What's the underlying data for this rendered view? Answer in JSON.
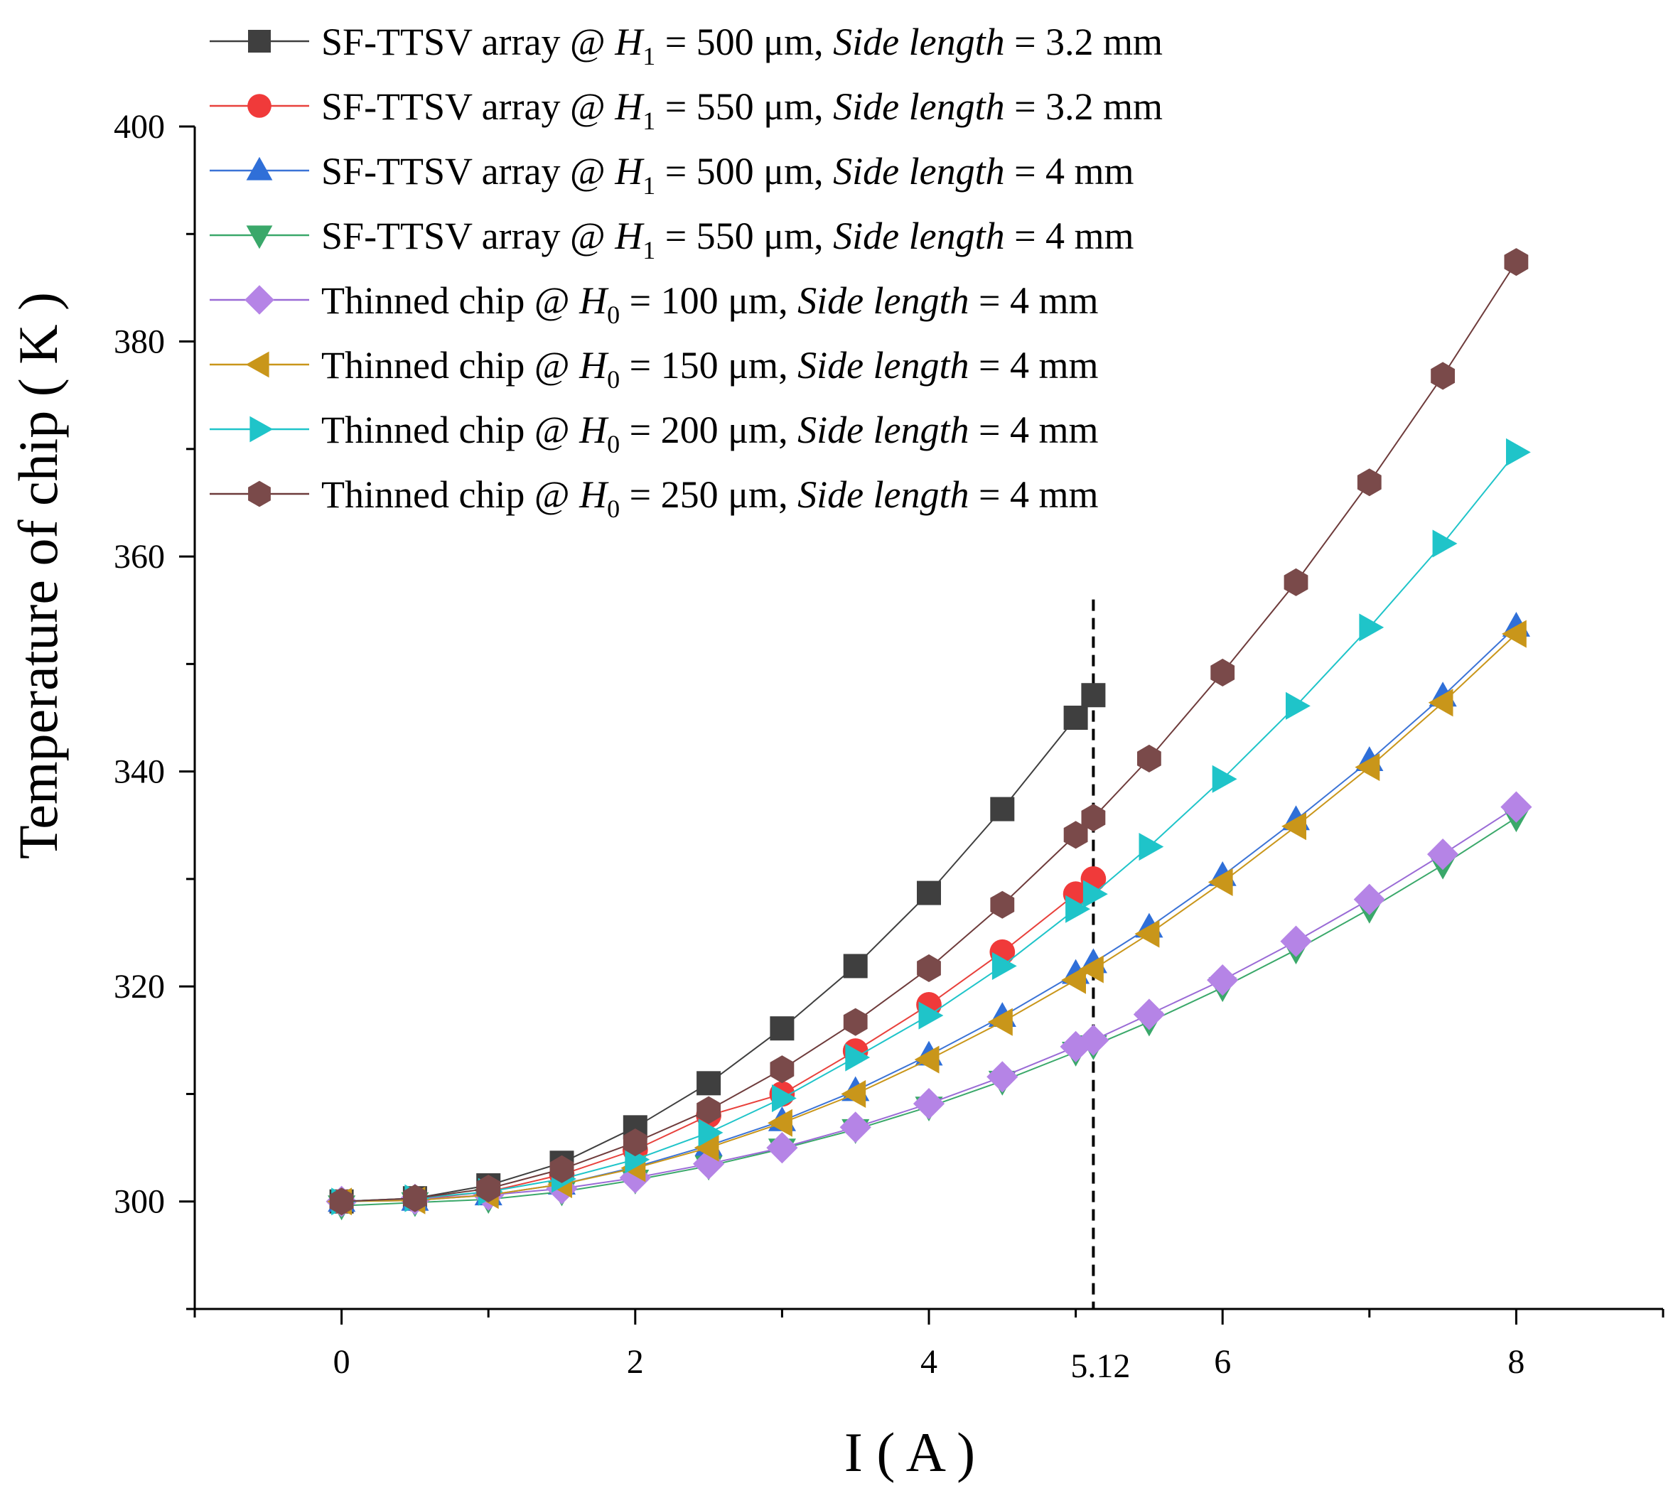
{
  "chart_data": {
    "type": "line",
    "title": "",
    "xlabel": "I ( A )",
    "ylabel": "Temperature of chip ( K )",
    "xlim": [
      -1,
      9
    ],
    "ylim": [
      290,
      400
    ],
    "x_ticks": [
      0,
      2,
      4,
      6,
      8
    ],
    "y_ticks": [
      300,
      320,
      340,
      360,
      380,
      400
    ],
    "grid": false,
    "legend_position": "top-left",
    "annotation": {
      "x": 5.12,
      "label": "5.12",
      "style": "dashed-vertical-line",
      "y_top": 356
    },
    "x": [
      0,
      0.5,
      1,
      1.5,
      2,
      2.5,
      3,
      3.5,
      4,
      4.5,
      5,
      5.12,
      5.5,
      6,
      6.5,
      7,
      7.5,
      8
    ],
    "series": [
      {
        "name": "SF-TTSV array @ H1 = 500 μm, Side length = 3.2 mm",
        "legend": {
          "prefix": "SF-TTSV array @ ",
          "sym": "H",
          "sub": "1",
          "mid": " = 500 μm, ",
          "italic": "Side length",
          "suffix": " = 3.2 mm"
        },
        "color": "#3f3f3f",
        "line_color": "#3f3f3f",
        "marker": "square",
        "values": [
          300,
          300.3,
          301.5,
          303.6,
          306.9,
          311,
          316.1,
          321.9,
          328.7,
          336.5,
          345,
          347.1,
          null,
          null,
          null,
          null,
          null,
          null
        ]
      },
      {
        "name": "SF-TTSV array @ H1 = 550 μm, Side length = 3.2 mm",
        "legend": {
          "prefix": "SF-TTSV array @ ",
          "sym": "H",
          "sub": "1",
          "mid": " = 550 μm, ",
          "italic": "Side length",
          "suffix": " = 3.2 mm"
        },
        "color": "#f03a3a",
        "line_color": "#e8413c",
        "marker": "circle",
        "values": [
          300,
          300.2,
          300.9,
          302.5,
          304.8,
          308,
          310,
          314,
          318.3,
          323.2,
          328.6,
          330,
          null,
          null,
          null,
          null,
          null,
          null
        ]
      },
      {
        "name": "SF-TTSV array @ H1 = 500 μm, Side length = 4 mm",
        "legend": {
          "prefix": "SF-TTSV array @ ",
          "sym": "H",
          "sub": "1",
          "mid": " = 500 μm, ",
          "italic": "Side length",
          "suffix": " = 4 mm"
        },
        "color": "#2f6fd8",
        "line_color": "#3b73d6",
        "marker": "triangle-up",
        "values": [
          300,
          300.1,
          300.6,
          301.6,
          303.2,
          305.2,
          307.5,
          310.3,
          313.6,
          317.2,
          321.2,
          322.2,
          325.5,
          330.3,
          335.5,
          341,
          347,
          353.5
        ]
      },
      {
        "name": "SF-TTSV array @ H1 = 550 μm, Side length = 4 mm",
        "legend": {
          "prefix": "SF-TTSV array @ ",
          "sym": "H",
          "sub": "1",
          "mid": " = 550 μm, ",
          "italic": "Side length",
          "suffix": " = 4 mm"
        },
        "color": "#3aa86a",
        "line_color": "#3aa86a",
        "marker": "triangle-down",
        "values": [
          299.6,
          299.9,
          300.2,
          300.9,
          302,
          303.3,
          304.9,
          306.7,
          308.8,
          311.2,
          313.9,
          314.5,
          316.7,
          319.9,
          323.4,
          327.2,
          331.3,
          335.7
        ]
      },
      {
        "name": "Thinned chip @ H0 = 100 μm, Side length = 4 mm",
        "legend": {
          "prefix": "Thinned chip @ ",
          "sym": "H",
          "sub": "0",
          "mid": " = 100 μm, ",
          "italic": "Side length",
          "suffix": " = 4 mm"
        },
        "color": "#b584e6",
        "line_color": "#9a6bd6",
        "marker": "diamond",
        "values": [
          300,
          300.2,
          300.6,
          301.2,
          302.2,
          303.5,
          305,
          306.9,
          309.1,
          311.6,
          314.4,
          315,
          317.4,
          320.6,
          324.2,
          328.1,
          332.3,
          336.7
        ]
      },
      {
        "name": "Thinned chip @ H0 = 150 μm, Side length = 4 mm",
        "legend": {
          "prefix": "Thinned chip @ ",
          "sym": "H",
          "sub": "0",
          "mid": " = 150 μm, ",
          "italic": "Side length",
          "suffix": " = 4 mm"
        },
        "color": "#c9961a",
        "line_color": "#c9961a",
        "marker": "triangle-left",
        "values": [
          300,
          300.1,
          300.6,
          301.6,
          303.1,
          305,
          307.3,
          310,
          313.2,
          316.7,
          320.6,
          321.6,
          324.9,
          329.7,
          334.9,
          340.4,
          346.4,
          352.8
        ]
      },
      {
        "name": "Thinned chip @ H0 = 200 μm, Side length = 4 mm",
        "legend": {
          "prefix": "Thinned chip @ ",
          "sym": "H",
          "sub": "0",
          "mid": " = 200 μm, ",
          "italic": "Side length",
          "suffix": " = 4 mm"
        },
        "color": "#1fc4c9",
        "line_color": "#1fc4c9",
        "marker": "triangle-right",
        "values": [
          300,
          300.3,
          300.9,
          302.1,
          303.9,
          306.4,
          309.6,
          313.4,
          317.3,
          321.9,
          327.2,
          328.6,
          333,
          339.3,
          346.1,
          353.4,
          361.2,
          369.7
        ]
      },
      {
        "name": "Thinned chip @ H0 = 250 μm, Side length = 4 mm",
        "legend": {
          "prefix": "Thinned chip @ ",
          "sym": "H",
          "sub": "0",
          "mid": " = 250 μm, ",
          "italic": "Side length",
          "suffix": " = 4 mm"
        },
        "color": "#7a4a4a",
        "line_color": "#6e3b3b",
        "marker": "hexagon",
        "values": [
          300,
          300.3,
          301.2,
          303,
          305.5,
          308.5,
          312.3,
          316.7,
          321.7,
          327.6,
          334.1,
          335.7,
          341.2,
          349.2,
          357.6,
          366.9,
          376.8,
          387.4
        ]
      }
    ]
  }
}
